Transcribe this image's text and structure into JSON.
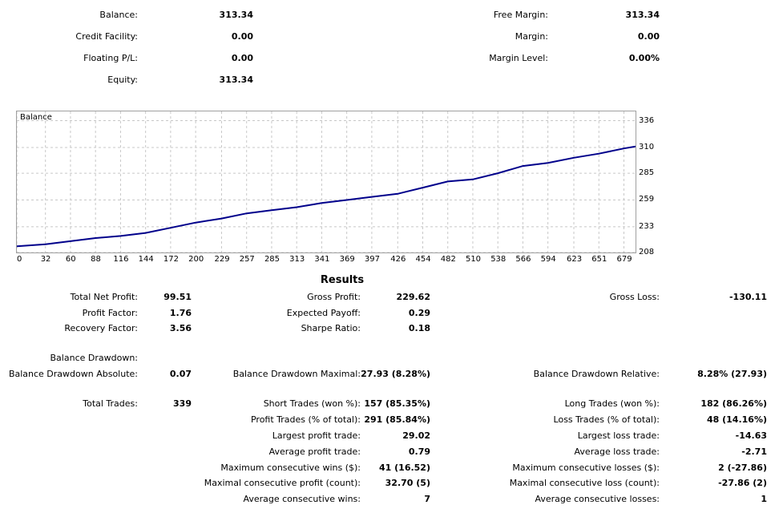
{
  "account": {
    "balance_label": "Balance:",
    "balance": "313.34",
    "credit_label": "Credit Facility:",
    "credit": "0.00",
    "floating_label": "Floating P/L:",
    "floating": "0.00",
    "equity_label": "Equity:",
    "equity": "313.34",
    "free_margin_label": "Free Margin:",
    "free_margin": "313.34",
    "margin_label": "Margin:",
    "margin": "0.00",
    "margin_level_label": "Margin Level:",
    "margin_level": "0.00%"
  },
  "chart_data": {
    "type": "line",
    "title": "Balance",
    "xlabel": "",
    "ylabel": "",
    "x_ticks": [
      "0",
      "32",
      "60",
      "88",
      "116",
      "144",
      "172",
      "200",
      "229",
      "257",
      "285",
      "313",
      "341",
      "369",
      "397",
      "426",
      "454",
      "482",
      "510",
      "538",
      "566",
      "594",
      "623",
      "651",
      "679"
    ],
    "y_ticks": [
      "336",
      "310",
      "285",
      "259",
      "233",
      "208"
    ],
    "xlim": [
      0,
      692
    ],
    "ylim": [
      208,
      345
    ],
    "grid": true,
    "series": [
      {
        "color": "#00008b",
        "x": [
          0,
          32,
          60,
          88,
          116,
          144,
          172,
          200,
          229,
          257,
          285,
          313,
          341,
          369,
          397,
          426,
          454,
          482,
          510,
          538,
          566,
          594,
          623,
          651,
          679,
          692
        ],
        "y": [
          214,
          216,
          219,
          222,
          224,
          227,
          232,
          237,
          241,
          246,
          249,
          252,
          256,
          259,
          262,
          265,
          271,
          277,
          279,
          285,
          292,
          295,
          300,
          304,
          309,
          311
        ]
      }
    ]
  },
  "results": {
    "title": "Results",
    "total_net_profit_label": "Total Net Profit:",
    "total_net_profit": "99.51",
    "gross_profit_label": "Gross Profit:",
    "gross_profit": "229.62",
    "gross_loss_label": "Gross Loss:",
    "gross_loss": "-130.11",
    "profit_factor_label": "Profit Factor:",
    "profit_factor": "1.76",
    "expected_payoff_label": "Expected Payoff:",
    "expected_payoff": "0.29",
    "recovery_factor_label": "Recovery Factor:",
    "recovery_factor": "3.56",
    "sharpe_ratio_label": "Sharpe Ratio:",
    "sharpe_ratio": "0.18",
    "balance_drawdown_label": "Balance Drawdown:",
    "bd_absolute_label": "Balance Drawdown Absolute:",
    "bd_absolute": "0.07",
    "bd_maximal_label": "Balance Drawdown Maximal:",
    "bd_maximal": "27.93 (8.28%)",
    "bd_relative_label": "Balance Drawdown Relative:",
    "bd_relative": "8.28% (27.93)",
    "total_trades_label": "Total Trades:",
    "total_trades": "339",
    "short_trades_label": "Short Trades (won %):",
    "short_trades": "157 (85.35%)",
    "long_trades_label": "Long Trades (won %):",
    "long_trades": "182 (86.26%)",
    "profit_trades_label": "Profit Trades (% of total):",
    "profit_trades": "291 (85.84%)",
    "loss_trades_label": "Loss Trades (% of total):",
    "loss_trades": "48 (14.16%)",
    "largest_profit_label": "Largest profit trade:",
    "largest_profit": "29.02",
    "largest_loss_label": "Largest loss trade:",
    "largest_loss": "-14.63",
    "avg_profit_label": "Average profit trade:",
    "avg_profit": "0.79",
    "avg_loss_label": "Average loss trade:",
    "avg_loss": "-2.71",
    "max_consec_wins_label": "Maximum consecutive wins ($):",
    "max_consec_wins": "41 (16.52)",
    "max_consec_losses_label": "Maximum consecutive losses ($):",
    "max_consec_losses": "2 (-27.86)",
    "maximal_consec_profit_label": "Maximal consecutive profit (count):",
    "maximal_consec_profit": "32.70 (5)",
    "maximal_consec_loss_label": "Maximal consecutive loss (count):",
    "maximal_consec_loss": "-27.86 (2)",
    "avg_consec_wins_label": "Average consecutive wins:",
    "avg_consec_wins": "7",
    "avg_consec_losses_label": "Average consecutive losses:",
    "avg_consec_losses": "1"
  }
}
